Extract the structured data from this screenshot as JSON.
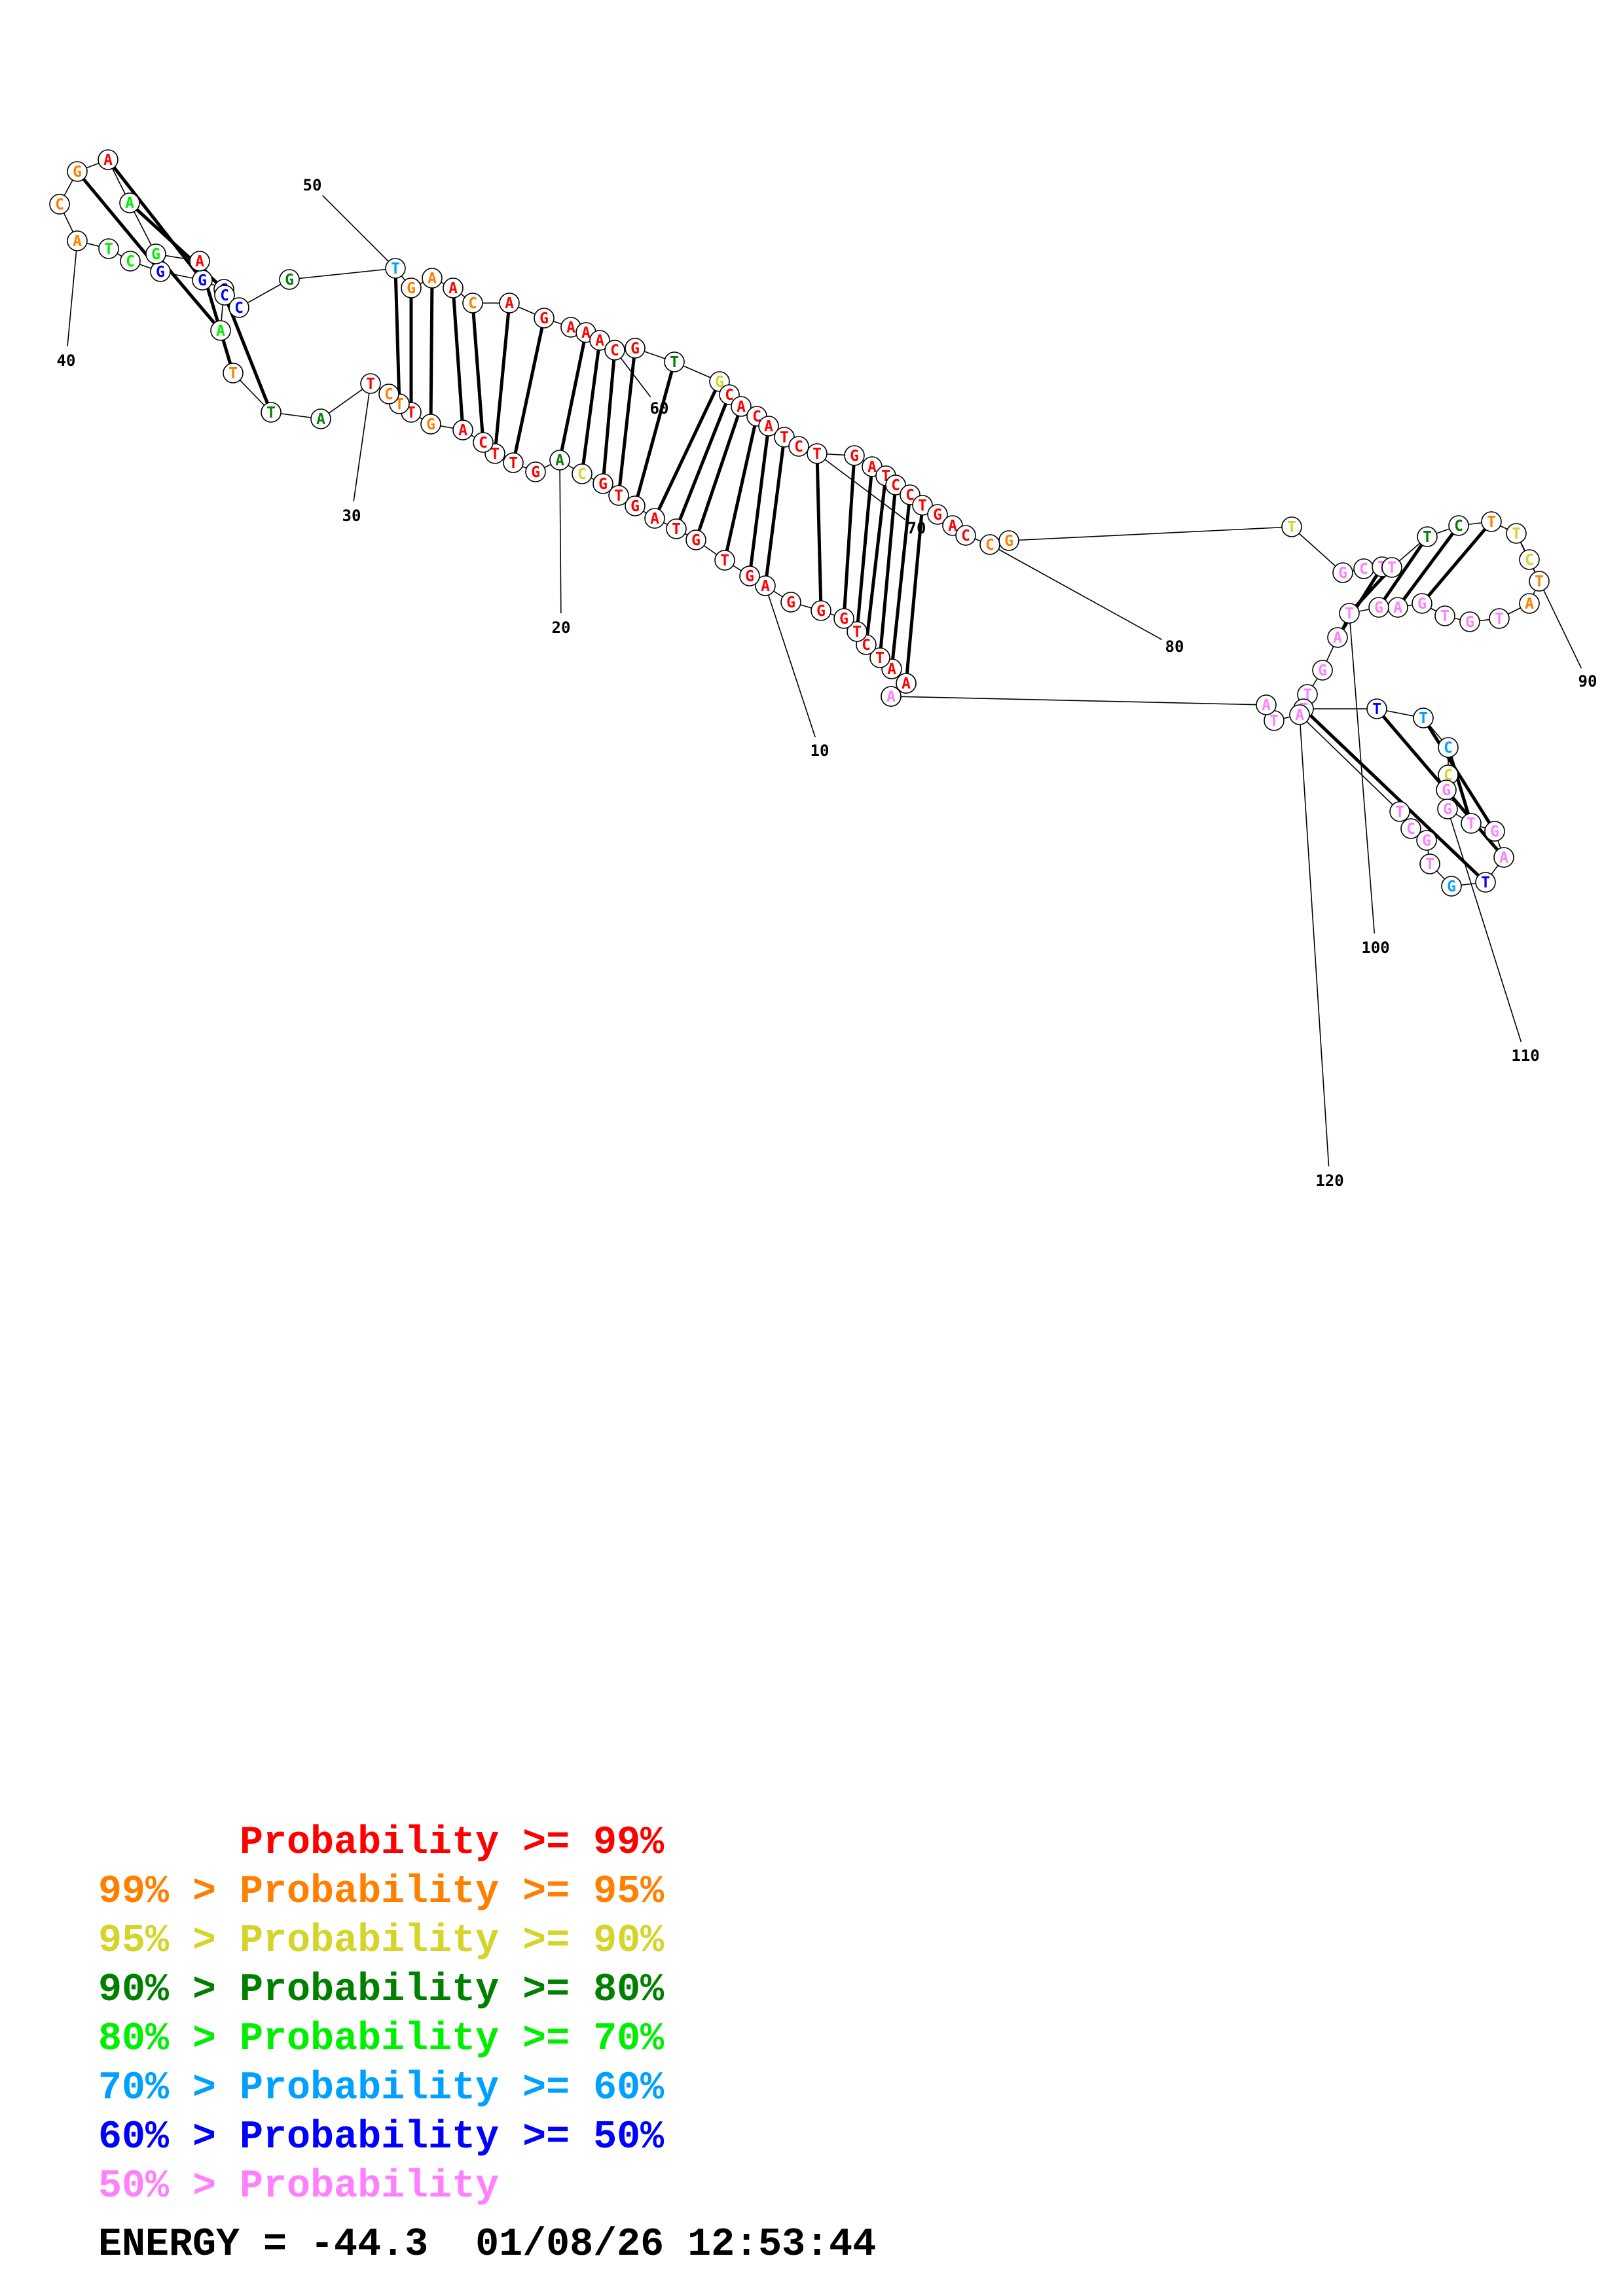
{
  "colors": {
    "p99": "#ff0000",
    "p95": "#ff8000",
    "p90": "#d4d42a",
    "p80": "#008000",
    "p70": "#00ee00",
    "p60": "#00a0ff",
    "p50": "#0000ff",
    "plt50": "#ff80ff"
  },
  "legend": [
    {
      "text": "      Probability >= 99%",
      "level": "p99"
    },
    {
      "text": "99% > Probability >= 95%",
      "level": "p95"
    },
    {
      "text": "95% > Probability >= 90%",
      "level": "p90"
    },
    {
      "text": "90% > Probability >= 80%",
      "level": "p80"
    },
    {
      "text": "80% > Probability >= 70%",
      "level": "p70"
    },
    {
      "text": "70% > Probability >= 60%",
      "level": "p60"
    },
    {
      "text": "60% > Probability >= 50%",
      "level": "p50"
    },
    {
      "text": "50% > Probability",
      "level": "plt50"
    }
  ],
  "energy": {
    "text": "ENERGY = -44.3  01/08/26 12:53:44"
  },
  "structure": {
    "nucleotides": [
      {
        "base": "A",
        "level": "p99"
      },
      {
        "base": "G",
        "level": "p99"
      },
      {
        "base": "A",
        "level": "p99"
      },
      {
        "base": "T",
        "level": "p99"
      },
      {
        "base": "C",
        "level": "p99"
      },
      {
        "base": "T",
        "level": "p99"
      },
      {
        "base": "G",
        "level": "p99"
      },
      {
        "base": "G",
        "level": "p99"
      },
      {
        "base": "G",
        "level": "p99"
      },
      {
        "base": "A",
        "level": "p99"
      },
      {
        "base": "G",
        "level": "p99"
      },
      {
        "base": "T",
        "level": "p99"
      },
      {
        "base": "G",
        "level": "p99"
      },
      {
        "base": "T",
        "level": "p99"
      },
      {
        "base": "A",
        "level": "p99"
      },
      {
        "base": "G",
        "level": "p99"
      },
      {
        "base": "T",
        "level": "p99"
      },
      {
        "base": "G",
        "level": "p99"
      },
      {
        "base": "C",
        "level": "p90"
      },
      {
        "base": "A",
        "level": "p80"
      },
      {
        "base": "G",
        "level": "p99"
      },
      {
        "base": "T",
        "level": "p99"
      },
      {
        "base": "T",
        "level": "p99"
      },
      {
        "base": "C",
        "level": "p99"
      },
      {
        "base": "A",
        "level": "p99"
      },
      {
        "base": "G",
        "level": "p95"
      },
      {
        "base": "T",
        "level": "p99"
      },
      {
        "base": "T",
        "level": "p95"
      },
      {
        "base": "C",
        "level": "p95"
      },
      {
        "base": "T",
        "level": "p99"
      },
      {
        "base": "A",
        "level": "p80"
      },
      {
        "base": "T",
        "level": "p80"
      },
      {
        "base": "T",
        "level": "p95"
      },
      {
        "base": "A",
        "level": "p70"
      },
      {
        "base": "G",
        "level": "p50"
      },
      {
        "base": "G",
        "level": "p50"
      },
      {
        "base": "G",
        "level": "p50"
      },
      {
        "base": "C",
        "level": "p70"
      },
      {
        "base": "T",
        "level": "p70"
      },
      {
        "base": "A",
        "level": "p95"
      },
      {
        "base": "C",
        "level": "p95"
      },
      {
        "base": "G",
        "level": "p95"
      },
      {
        "base": "A",
        "level": "p99"
      },
      {
        "base": "A",
        "level": "p70"
      },
      {
        "base": "G",
        "level": "p70"
      },
      {
        "base": "A",
        "level": "p99"
      },
      {
        "base": "C",
        "level": "p50"
      },
      {
        "base": "C",
        "level": "p50"
      },
      {
        "base": "G",
        "level": "p80"
      },
      {
        "base": "T",
        "level": "p60"
      },
      {
        "base": "G",
        "level": "p95"
      },
      {
        "base": "A",
        "level": "p95"
      },
      {
        "base": "A",
        "level": "p99"
      },
      {
        "base": "C",
        "level": "p95"
      },
      {
        "base": "A",
        "level": "p99"
      },
      {
        "base": "G",
        "level": "p99"
      },
      {
        "base": "A",
        "level": "p99"
      },
      {
        "base": "A",
        "level": "p99"
      },
      {
        "base": "A",
        "level": "p99"
      },
      {
        "base": "C",
        "level": "p99"
      },
      {
        "base": "G",
        "level": "p99"
      },
      {
        "base": "T",
        "level": "p80"
      },
      {
        "base": "G",
        "level": "p90"
      },
      {
        "base": "C",
        "level": "p99"
      },
      {
        "base": "A",
        "level": "p99"
      },
      {
        "base": "C",
        "level": "p99"
      },
      {
        "base": "A",
        "level": "p99"
      },
      {
        "base": "T",
        "level": "p99"
      },
      {
        "base": "C",
        "level": "p99"
      },
      {
        "base": "T",
        "level": "p99"
      },
      {
        "base": "G",
        "level": "p99"
      },
      {
        "base": "A",
        "level": "p99"
      },
      {
        "base": "T",
        "level": "p99"
      },
      {
        "base": "C",
        "level": "p99"
      },
      {
        "base": "C",
        "level": "p99"
      },
      {
        "base": "T",
        "level": "p99"
      },
      {
        "base": "G",
        "level": "p99"
      },
      {
        "base": "A",
        "level": "p99"
      },
      {
        "base": "C",
        "level": "p99"
      },
      {
        "base": "C",
        "level": "p95"
      },
      {
        "base": "G",
        "level": "p95"
      },
      {
        "base": "T",
        "level": "p90"
      },
      {
        "base": "G",
        "level": "plt50"
      },
      {
        "base": "C",
        "level": "plt50"
      },
      {
        "base": "T",
        "level": "plt50"
      },
      {
        "base": "T",
        "level": "plt50"
      },
      {
        "base": "T",
        "level": "p80"
      },
      {
        "base": "C",
        "level": "p80"
      },
      {
        "base": "T",
        "level": "p95"
      },
      {
        "base": "T",
        "level": "p90"
      },
      {
        "base": "C",
        "level": "p90"
      },
      {
        "base": "T",
        "level": "p95"
      },
      {
        "base": "A",
        "level": "p95"
      },
      {
        "base": "T",
        "level": "plt50"
      },
      {
        "base": "G",
        "level": "plt50"
      },
      {
        "base": "T",
        "level": "plt50"
      },
      {
        "base": "G",
        "level": "plt50"
      },
      {
        "base": "A",
        "level": "plt50"
      },
      {
        "base": "G",
        "level": "plt50"
      },
      {
        "base": "T",
        "level": "plt50"
      },
      {
        "base": "A",
        "level": "plt50"
      },
      {
        "base": "G",
        "level": "plt50"
      },
      {
        "base": "T",
        "level": "plt50"
      },
      {
        "base": "T",
        "level": "plt50"
      },
      {
        "base": "T",
        "level": "p50"
      },
      {
        "base": "T",
        "level": "p60"
      },
      {
        "base": "C",
        "level": "p60"
      },
      {
        "base": "C",
        "level": "p90"
      },
      {
        "base": "G",
        "level": "plt50"
      },
      {
        "base": "G",
        "level": "plt50"
      },
      {
        "base": "T",
        "level": "plt50"
      },
      {
        "base": "G",
        "level": "plt50"
      },
      {
        "base": "A",
        "level": "plt50"
      },
      {
        "base": "T",
        "level": "p50"
      },
      {
        "base": "G",
        "level": "p60"
      },
      {
        "base": "T",
        "level": "plt50"
      },
      {
        "base": "G",
        "level": "plt50"
      },
      {
        "base": "C",
        "level": "plt50"
      },
      {
        "base": "T",
        "level": "plt50"
      },
      {
        "base": "A",
        "level": "plt50"
      },
      {
        "base": "T",
        "level": "plt50"
      },
      {
        "base": "A",
        "level": "plt50"
      },
      {
        "base": "A",
        "level": "plt50"
      },
      {
        "base": "A",
        "level": "p99"
      }
    ],
    "index_labels": [
      "10",
      "20",
      "30",
      "40",
      "50",
      "60",
      "70",
      "80",
      "90",
      "100",
      "110",
      "120"
    ]
  }
}
